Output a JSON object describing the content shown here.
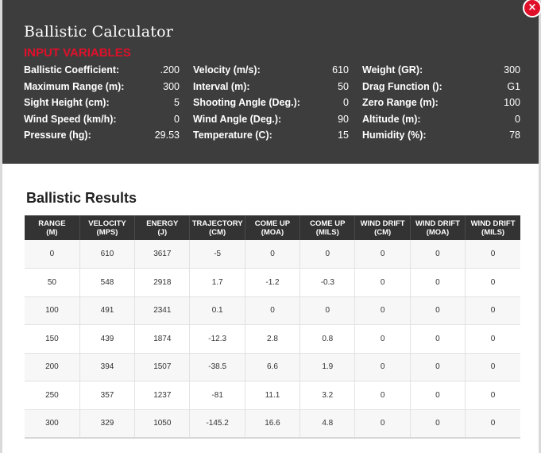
{
  "title": "Ballistic Calculator",
  "close_label": "×",
  "input_heading": "INPUT VARIABLES",
  "inputs": [
    [
      {
        "label": "Ballistic Coefficient:",
        "value": ".200"
      },
      {
        "label": "Velocity (m/s):",
        "value": "610"
      },
      {
        "label": "Weight (GR):",
        "value": "300"
      }
    ],
    [
      {
        "label": "Maximum Range (m):",
        "value": "300"
      },
      {
        "label": "Interval (m):",
        "value": "50"
      },
      {
        "label": "Drag Function ():",
        "value": "G1"
      }
    ],
    [
      {
        "label": "Sight Height (cm):",
        "value": "5"
      },
      {
        "label": "Shooting Angle (Deg.):",
        "value": "0"
      },
      {
        "label": "Zero Range (m):",
        "value": "100"
      }
    ],
    [
      {
        "label": "Wind Speed (km/h):",
        "value": "0"
      },
      {
        "label": "Wind Angle (Deg.):",
        "value": "90"
      },
      {
        "label": "Altitude (m):",
        "value": "0"
      }
    ],
    [
      {
        "label": "Pressure (hg):",
        "value": "29.53"
      },
      {
        "label": "Temperature (C):",
        "value": "15"
      },
      {
        "label": "Humidity (%):",
        "value": "78"
      }
    ]
  ],
  "results_title": "Ballistic Results",
  "columns": [
    {
      "line1": "RANGE",
      "line2": "(M)"
    },
    {
      "line1": "VELOCITY",
      "line2": "(MPS)"
    },
    {
      "line1": "ENERGY",
      "line2": "(J)"
    },
    {
      "line1": "TRAJECTORY",
      "line2": "(CM)"
    },
    {
      "line1": "COME UP",
      "line2": "(MOA)"
    },
    {
      "line1": "COME UP",
      "line2": "(MILS)"
    },
    {
      "line1": "WIND DRIFT",
      "line2": "(CM)"
    },
    {
      "line1": "WIND DRIFT",
      "line2": "(MOA)"
    },
    {
      "line1": "WIND DRIFT",
      "line2": "(MILS)"
    }
  ],
  "rows": [
    [
      "0",
      "610",
      "3617",
      "-5",
      "0",
      "0",
      "0",
      "0",
      "0"
    ],
    [
      "50",
      "548",
      "2918",
      "1.7",
      "-1.2",
      "-0.3",
      "0",
      "0",
      "0"
    ],
    [
      "100",
      "491",
      "2341",
      "0.1",
      "0",
      "0",
      "0",
      "0",
      "0"
    ],
    [
      "150",
      "439",
      "1874",
      "-12.3",
      "2.8",
      "0.8",
      "0",
      "0",
      "0"
    ],
    [
      "200",
      "394",
      "1507",
      "-38.5",
      "6.6",
      "1.9",
      "0",
      "0",
      "0"
    ],
    [
      "250",
      "357",
      "1237",
      "-81",
      "11.1",
      "3.2",
      "0",
      "0",
      "0"
    ],
    [
      "300",
      "329",
      "1050",
      "-145.2",
      "16.6",
      "4.8",
      "0",
      "0",
      "0"
    ]
  ],
  "colors": {
    "accent": "#e0102a",
    "header_bg": "#3d3d3d",
    "table_header_bg": "#333333"
  }
}
